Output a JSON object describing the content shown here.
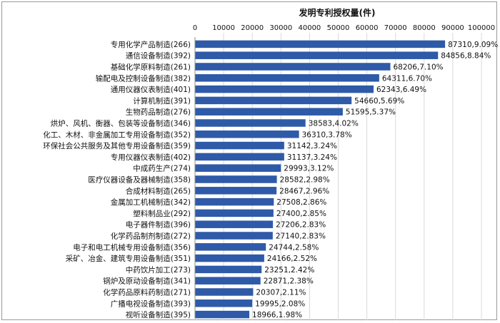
{
  "chart_data": {
    "type": "bar",
    "orientation": "horizontal",
    "title": "发明专利授权量(件)",
    "xlim": [
      0,
      100000
    ],
    "x_ticks": [
      "0",
      "10000",
      "20000",
      "30000",
      "40000",
      "50000",
      "60000",
      "70000",
      "80000",
      "90000",
      "100000"
    ],
    "grid": true,
    "bar_color": "#2e5aa8",
    "categories": [
      "专用化学产品制造(266)",
      "通信设备制造(392)",
      "基础化学原料制造(261)",
      "输配电及控制设备制造(382)",
      "通用仪器仪表制造(401)",
      "计算机制造(391)",
      "生物药品制造(276)",
      "烘炉、风机、衡器、包装等设备制造(346)",
      "化工、木材、非金属加工专用设备制造(352)",
      "环保社会公共服务及其他专用设备制造(359)",
      "专用仪器仪表制造(402)",
      "中成药生产(274)",
      "医疗仪器设备及器械制造(358)",
      "合成材料制造(265)",
      "金属加工机械制造(342)",
      "塑料制品业(292)",
      "电子器件制造(396)",
      "化学药品制剂制造(272)",
      "电子和电工机械专用设备制造(356)",
      "采矿、冶金、建筑专用设备制造(351)",
      "中药饮片加工(273)",
      "锅炉及原动设备制造(341)",
      "化学药品原料药制造(271)",
      "广播电视设备制造(393)",
      "视听设备制造(395)"
    ],
    "values": [
      87310,
      84856,
      68206,
      64311,
      62343,
      54660,
      51595,
      38583,
      36310,
      31142,
      31137,
      29993,
      28582,
      28467,
      27508,
      27400,
      27206,
      27140,
      24744,
      24166,
      23251,
      22871,
      20307,
      19995,
      18966
    ],
    "data_labels": [
      "87310,9.09%",
      "84856,8.84%",
      "68206,7.10%",
      "64311,6.70%",
      "62343,6.49%",
      "54660,5.69%",
      "51595,5.37%",
      "38583,4.02%",
      "36310,3.78%",
      "31142,3.24%",
      "31137,3.24%",
      "29993,3.12%",
      "28582,2.98%",
      "28467,2.96%",
      "27508,2.86%",
      "27400,2.85%",
      "27206,2.83%",
      "27140,2.83%",
      "24744,2.58%",
      "24166,2.52%",
      "23251,2.42%",
      "22871,2.38%",
      "20307,2.11%",
      "19995,2.08%",
      "18966,1.98%"
    ]
  }
}
